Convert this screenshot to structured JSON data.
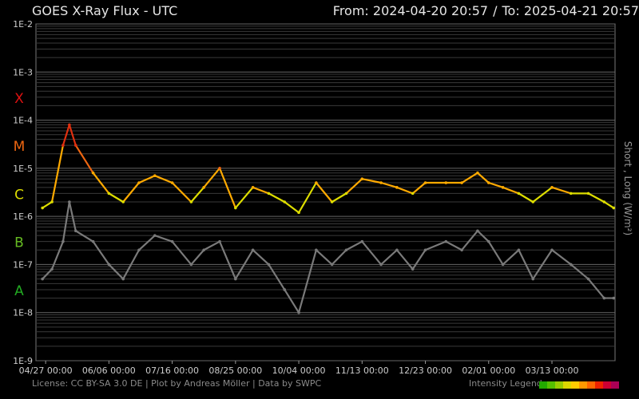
{
  "header": {
    "title": "GOES X-Ray Flux - UTC",
    "from_label": "From:",
    "from_value": "2024-04-20 20:57",
    "separator": "/",
    "to_label": "To:",
    "to_value": "2025-04-21 20:57"
  },
  "footer": {
    "license": "License: CC BY-SA 3.0 DE | Plot by Andreas Möller | Data by SWPC",
    "legend_label": "Intensity Legend",
    "legend_colors": [
      "#22aa00",
      "#55c000",
      "#99cc00",
      "#ddd800",
      "#ffcc00",
      "#ff9900",
      "#ff6600",
      "#ee2200",
      "#cc0033",
      "#aa0055"
    ]
  },
  "chart_data": {
    "type": "line",
    "title": "GOES X-Ray Flux - UTC",
    "ylabel": "Short , Long (W/m²)",
    "yscale": "log",
    "ylim": [
      1e-09,
      0.01
    ],
    "y_tick_labels": [
      "1E-2",
      "1E-3",
      "1E-4",
      "1E-5",
      "1E-6",
      "1E-7",
      "1E-8",
      "1E-9"
    ],
    "y_tick_values": [
      0.01,
      0.001,
      0.0001,
      1e-05,
      1e-06,
      1e-07,
      1e-08,
      1e-09
    ],
    "flare_classes": [
      {
        "label": "X",
        "value": 0.0003,
        "color": "#dd1111"
      },
      {
        "label": "M",
        "value": 3e-05,
        "color": "#ee6611"
      },
      {
        "label": "C",
        "value": 3e-06,
        "color": "#dddd00"
      },
      {
        "label": "B",
        "value": 3e-07,
        "color": "#66bb22"
      },
      {
        "label": "A",
        "value": 3e-08,
        "color": "#22aa22"
      }
    ],
    "xlim": [
      "2024-04-20 20:57",
      "2025-04-21 20:57"
    ],
    "x_ticks": [
      {
        "label": "04/27 00:00",
        "date": "2024-04-27"
      },
      {
        "label": "06/06 00:00",
        "date": "2024-06-06"
      },
      {
        "label": "07/16 00:00",
        "date": "2024-07-16"
      },
      {
        "label": "08/25 00:00",
        "date": "2024-08-25"
      },
      {
        "label": "10/04 00:00",
        "date": "2024-10-04"
      },
      {
        "label": "11/13 00:00",
        "date": "2024-11-13"
      },
      {
        "label": "12/23 00:00",
        "date": "2024-12-23"
      },
      {
        "label": "02/01 00:00",
        "date": "2025-02-01"
      },
      {
        "label": "03/13 00:00",
        "date": "2025-03-13"
      }
    ],
    "grid": true,
    "series": [
      {
        "name": "Long",
        "color_by_intensity": true,
        "x": [
          "2024-04-25",
          "2024-05-01",
          "2024-05-08",
          "2024-05-12",
          "2024-05-16",
          "2024-05-27",
          "2024-06-06",
          "2024-06-15",
          "2024-06-25",
          "2024-07-05",
          "2024-07-16",
          "2024-07-28",
          "2024-08-05",
          "2024-08-15",
          "2024-08-25",
          "2024-09-05",
          "2024-09-15",
          "2024-09-25",
          "2024-10-04",
          "2024-10-15",
          "2024-10-25",
          "2024-11-03",
          "2024-11-13",
          "2024-11-25",
          "2024-12-05",
          "2024-12-15",
          "2024-12-23",
          "2025-01-05",
          "2025-01-15",
          "2025-01-25",
          "2025-02-01",
          "2025-02-10",
          "2025-02-20",
          "2025-03-01",
          "2025-03-13",
          "2025-03-25",
          "2025-04-05",
          "2025-04-15",
          "2025-04-21"
        ],
        "y": [
          1.5e-06,
          2e-06,
          3e-05,
          8e-05,
          3e-05,
          8e-06,
          3e-06,
          2e-06,
          5e-06,
          7e-06,
          5e-06,
          2e-06,
          4e-06,
          1e-05,
          1.5e-06,
          4e-06,
          3e-06,
          2e-06,
          1.2e-06,
          5e-06,
          2e-06,
          3e-06,
          6e-06,
          5e-06,
          4e-06,
          3e-06,
          5e-06,
          5e-06,
          5e-06,
          8e-06,
          5e-06,
          4e-06,
          3e-06,
          2e-06,
          4e-06,
          3e-06,
          3e-06,
          2e-06,
          1.5e-06
        ]
      },
      {
        "name": "Short",
        "color": "#7a7a7a",
        "x": [
          "2024-04-25",
          "2024-05-01",
          "2024-05-08",
          "2024-05-12",
          "2024-05-16",
          "2024-05-27",
          "2024-06-06",
          "2024-06-15",
          "2024-06-25",
          "2024-07-05",
          "2024-07-16",
          "2024-07-28",
          "2024-08-05",
          "2024-08-15",
          "2024-08-25",
          "2024-09-05",
          "2024-09-15",
          "2024-09-25",
          "2024-10-04",
          "2024-10-15",
          "2024-10-25",
          "2024-11-03",
          "2024-11-13",
          "2024-11-25",
          "2024-12-05",
          "2024-12-15",
          "2024-12-23",
          "2025-01-05",
          "2025-01-15",
          "2025-01-25",
          "2025-02-01",
          "2025-02-10",
          "2025-02-20",
          "2025-03-01",
          "2025-03-13",
          "2025-03-25",
          "2025-04-05",
          "2025-04-15",
          "2025-04-21"
        ],
        "y": [
          5e-08,
          8e-08,
          3e-07,
          2e-06,
          5e-07,
          3e-07,
          1e-07,
          5e-08,
          2e-07,
          4e-07,
          3e-07,
          1e-07,
          2e-07,
          3e-07,
          5e-08,
          2e-07,
          1e-07,
          3e-08,
          1e-08,
          2e-07,
          1e-07,
          2e-07,
          3e-07,
          1e-07,
          2e-07,
          8e-08,
          2e-07,
          3e-07,
          2e-07,
          5e-07,
          3e-07,
          1e-07,
          2e-07,
          5e-08,
          2e-07,
          1e-07,
          5e-08,
          2e-08,
          2e-08
        ]
      }
    ]
  }
}
